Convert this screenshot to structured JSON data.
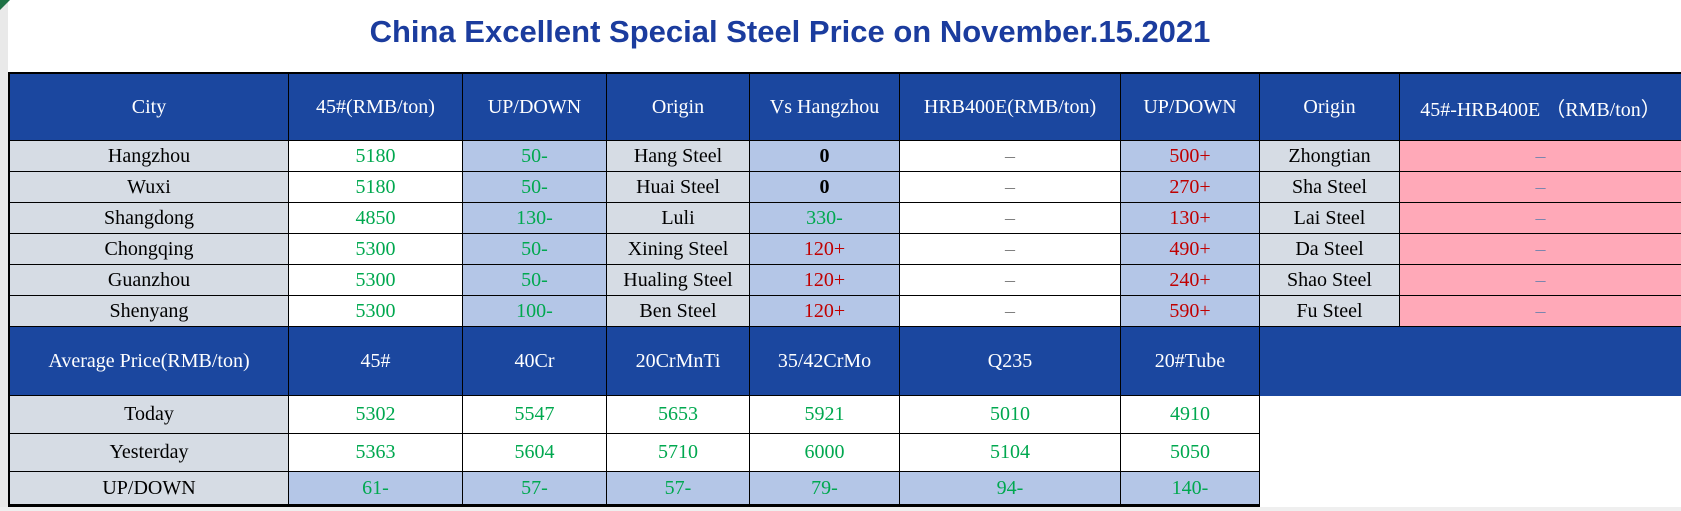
{
  "title": "China Excellent Special Steel Price on November.15.2021",
  "colors": {
    "title_blue": "#1B3C9E",
    "header_blue": "#1B479F",
    "light_gray_cell": "#D6DCE4",
    "light_blue_cell": "#B4C6E7",
    "pink_cell": "#FFA9B8",
    "up_red": "#C00000",
    "down_green": "#00A84F",
    "corner_mark_green": "#1E7145"
  },
  "price_table": {
    "headers": [
      "City",
      "45#(RMB/ton)",
      "UP/DOWN",
      "Origin",
      "Vs Hangzhou",
      "HRB400E(RMB/ton)",
      "UP/DOWN",
      "Origin",
      "45#-HRB400E （RMB/ton）"
    ],
    "rows": [
      {
        "cells": [
          {
            "t": "Hangzhou",
            "c": "black"
          },
          {
            "t": "5180",
            "c": "green"
          },
          {
            "t": "50-",
            "c": "green"
          },
          {
            "t": "Hang Steel",
            "c": "black"
          },
          {
            "t": "0",
            "c": "bold"
          },
          {
            "t": "–",
            "c": "gray"
          },
          {
            "t": "500+",
            "c": "red"
          },
          {
            "t": "Zhongtian",
            "c": "black"
          },
          {
            "t": "–",
            "c": "pink"
          }
        ]
      },
      {
        "cells": [
          {
            "t": "Wuxi",
            "c": "black"
          },
          {
            "t": "5180",
            "c": "green"
          },
          {
            "t": "50-",
            "c": "green"
          },
          {
            "t": "Huai Steel",
            "c": "black"
          },
          {
            "t": "0",
            "c": "bold"
          },
          {
            "t": "–",
            "c": "gray"
          },
          {
            "t": "270+",
            "c": "red"
          },
          {
            "t": "Sha Steel",
            "c": "black"
          },
          {
            "t": "–",
            "c": "pink"
          }
        ]
      },
      {
        "cells": [
          {
            "t": "Shangdong",
            "c": "black"
          },
          {
            "t": "4850",
            "c": "green"
          },
          {
            "t": "130-",
            "c": "green"
          },
          {
            "t": "Luli",
            "c": "black"
          },
          {
            "t": "330-",
            "c": "green"
          },
          {
            "t": "–",
            "c": "gray"
          },
          {
            "t": "130+",
            "c": "red"
          },
          {
            "t": "Lai Steel",
            "c": "black"
          },
          {
            "t": "–",
            "c": "pink"
          }
        ]
      },
      {
        "cells": [
          {
            "t": "Chongqing",
            "c": "black"
          },
          {
            "t": "5300",
            "c": "green"
          },
          {
            "t": "50-",
            "c": "green"
          },
          {
            "t": "Xining Steel",
            "c": "black"
          },
          {
            "t": "120+",
            "c": "red"
          },
          {
            "t": "–",
            "c": "gray"
          },
          {
            "t": "490+",
            "c": "red"
          },
          {
            "t": "Da Steel",
            "c": "black"
          },
          {
            "t": "–",
            "c": "pink"
          }
        ]
      },
      {
        "cells": [
          {
            "t": "Guanzhou",
            "c": "black"
          },
          {
            "t": "5300",
            "c": "green"
          },
          {
            "t": "50-",
            "c": "green"
          },
          {
            "t": "Hualing Steel",
            "c": "black"
          },
          {
            "t": "120+",
            "c": "red"
          },
          {
            "t": "–",
            "c": "gray"
          },
          {
            "t": "240+",
            "c": "red"
          },
          {
            "t": "Shao Steel",
            "c": "black"
          },
          {
            "t": "–",
            "c": "pink"
          }
        ]
      },
      {
        "cells": [
          {
            "t": "Shenyang",
            "c": "black"
          },
          {
            "t": "5300",
            "c": "green"
          },
          {
            "t": "100-",
            "c": "green"
          },
          {
            "t": "Ben Steel",
            "c": "black"
          },
          {
            "t": "120+",
            "c": "red"
          },
          {
            "t": "–",
            "c": "gray"
          },
          {
            "t": "590+",
            "c": "red"
          },
          {
            "t": "Fu Steel",
            "c": "black"
          },
          {
            "t": "–",
            "c": "pink"
          }
        ]
      }
    ]
  },
  "average_table": {
    "label": "Average Price(RMB/ton)",
    "headers": [
      "45#",
      "40Cr",
      "20CrMnTi",
      "35/42CrMo",
      "Q235",
      "20#Tube"
    ],
    "rows": [
      {
        "label": "Today",
        "cells": [
          {
            "t": "5302",
            "c": "green"
          },
          {
            "t": "5547",
            "c": "green"
          },
          {
            "t": "5653",
            "c": "green"
          },
          {
            "t": "5921",
            "c": "green"
          },
          {
            "t": "5010",
            "c": "green"
          },
          {
            "t": "4910",
            "c": "green"
          }
        ]
      },
      {
        "label": "Yesterday",
        "cells": [
          {
            "t": "5363",
            "c": "green"
          },
          {
            "t": "5604",
            "c": "green"
          },
          {
            "t": "5710",
            "c": "green"
          },
          {
            "t": "6000",
            "c": "green"
          },
          {
            "t": "5104",
            "c": "green"
          },
          {
            "t": "5050",
            "c": "green"
          }
        ]
      },
      {
        "label": "UP/DOWN",
        "cells": [
          {
            "t": "61-",
            "c": "green"
          },
          {
            "t": "57-",
            "c": "green"
          },
          {
            "t": "57-",
            "c": "green"
          },
          {
            "t": "79-",
            "c": "green"
          },
          {
            "t": "94-",
            "c": "green"
          },
          {
            "t": "140-",
            "c": "green"
          }
        ]
      }
    ]
  }
}
